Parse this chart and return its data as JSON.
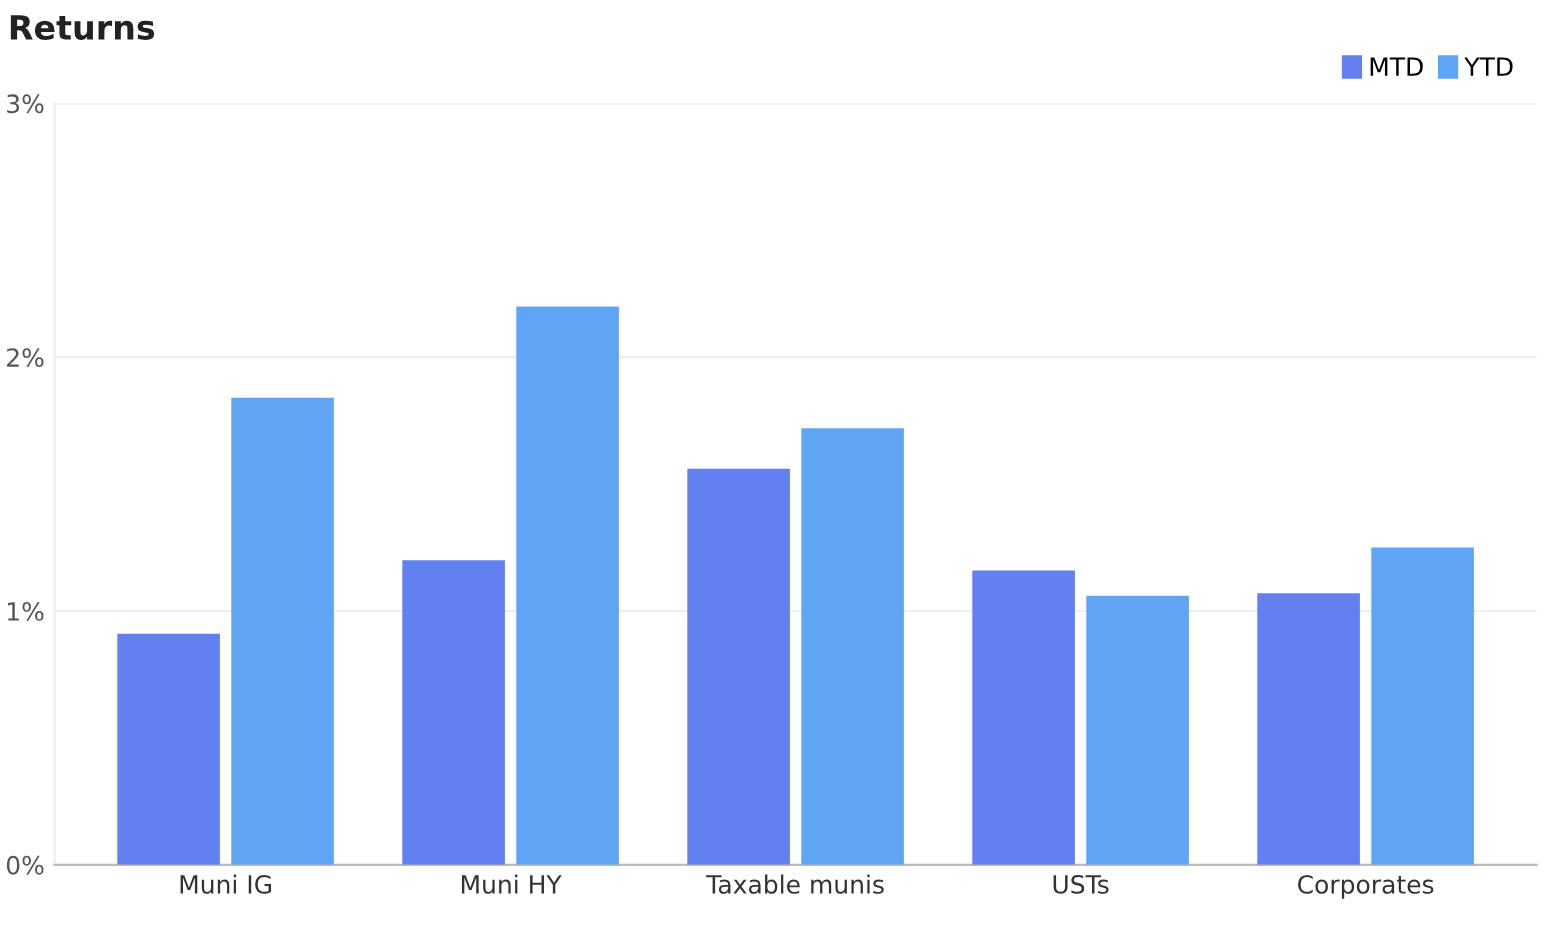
{
  "chart_data": {
    "type": "bar",
    "title": "Returns",
    "categories": [
      "Muni IG",
      "Muni HY",
      "Taxable munis",
      "USTs",
      "Corporates"
    ],
    "series": [
      {
        "name": "MTD",
        "color": "#6380f0",
        "values": [
          0.91,
          1.2,
          1.56,
          1.16,
          1.07
        ]
      },
      {
        "name": "YTD",
        "color": "#60a5f5",
        "values": [
          1.84,
          2.2,
          1.72,
          1.06,
          1.25
        ]
      }
    ],
    "ylim": [
      0,
      3
    ],
    "yticks": [
      {
        "value": 0,
        "label": "0%"
      },
      {
        "value": 1,
        "label": "1%"
      },
      {
        "value": 2,
        "label": "2%"
      },
      {
        "value": 3,
        "label": "3%"
      }
    ],
    "grid": "y",
    "legend": "top right"
  }
}
